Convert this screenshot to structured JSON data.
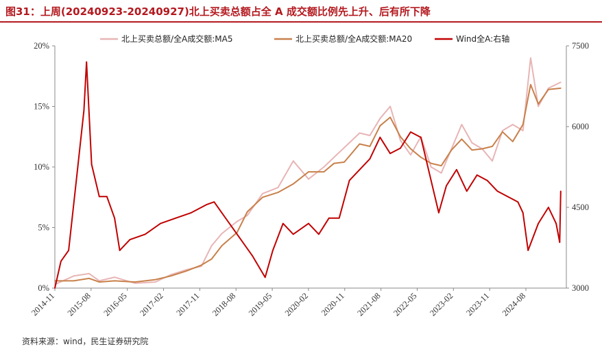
{
  "title": "图31：上周(20240923-20240927)北上买卖总额占全 A 成交额比例先上升、后有所下降",
  "source": "资料来源：wind，民生证券研究院",
  "colors": {
    "title": "#b3191f",
    "ma5": "#e8b4b4",
    "ma20": "#c8804a",
    "wind": "#c00000"
  },
  "chart_data": {
    "type": "line",
    "x_tick_labels": [
      "2014-11",
      "2015-08",
      "2016-05",
      "2017-02",
      "2017-11",
      "2018-08",
      "2019-05",
      "2020-02",
      "2020-11",
      "2021-08",
      "2022-05",
      "2023-02",
      "2023-11",
      "2024-08"
    ],
    "left_axis": {
      "ylim": [
        0,
        20
      ],
      "ticks": [
        "0%",
        "5%",
        "10%",
        "15%",
        "20%"
      ]
    },
    "right_axis": {
      "ylim": [
        3000,
        7500
      ],
      "ticks": [
        "3000",
        "4500",
        "6000",
        "7500"
      ]
    },
    "legend": [
      "北上买卖总额/全A成交额:MA5",
      "北上买卖总额/全A成交额:MA20",
      "Wind全A:右轴"
    ],
    "legend_position": "top",
    "grid": false,
    "series": [
      {
        "name": "北上买卖总额/全A成交额:MA5",
        "axis": "left",
        "x": [
          2014.83,
          2015.2,
          2015.5,
          2015.7,
          2016.0,
          2016.4,
          2016.8,
          2017.1,
          2017.4,
          2017.7,
          2017.9,
          2018.1,
          2018.4,
          2018.6,
          2018.9,
          2019.2,
          2019.5,
          2019.8,
          2020.1,
          2020.3,
          2020.5,
          2020.8,
          2021.0,
          2021.2,
          2021.4,
          2021.6,
          2021.8,
          2022.0,
          2022.2,
          2022.4,
          2022.6,
          2022.8,
          2023.0,
          2023.2,
          2023.4,
          2023.6,
          2023.8,
          2024.0,
          2024.15,
          2024.3,
          2024.5,
          2024.74
        ],
        "values": [
          0.3,
          1.0,
          1.2,
          0.6,
          0.9,
          0.4,
          0.5,
          1.1,
          1.5,
          1.8,
          3.5,
          4.5,
          5.5,
          6.0,
          7.8,
          8.3,
          10.5,
          9.0,
          10.0,
          10.8,
          11.6,
          12.8,
          12.6,
          14.0,
          15.0,
          12.2,
          11.0,
          12.5,
          10.0,
          9.5,
          11.5,
          13.5,
          12.0,
          11.5,
          10.5,
          13.0,
          13.5,
          13.0,
          19.0,
          15.0,
          16.5,
          17.0
        ]
      },
      {
        "name": "北上买卖总额/全A成交额:MA20",
        "axis": "left",
        "x": [
          2014.83,
          2015.2,
          2015.5,
          2015.7,
          2016.0,
          2016.4,
          2016.8,
          2017.1,
          2017.4,
          2017.7,
          2017.9,
          2018.1,
          2018.4,
          2018.6,
          2018.9,
          2019.2,
          2019.5,
          2019.8,
          2020.1,
          2020.3,
          2020.5,
          2020.8,
          2021.0,
          2021.2,
          2021.4,
          2021.6,
          2021.8,
          2022.0,
          2022.2,
          2022.4,
          2022.6,
          2022.8,
          2023.0,
          2023.2,
          2023.4,
          2023.6,
          2023.8,
          2024.0,
          2024.15,
          2024.3,
          2024.5,
          2024.74
        ],
        "values": [
          0.6,
          0.6,
          0.8,
          0.5,
          0.6,
          0.5,
          0.7,
          1.0,
          1.4,
          1.9,
          2.4,
          3.5,
          4.6,
          6.3,
          7.5,
          7.9,
          8.6,
          9.6,
          9.6,
          10.3,
          10.4,
          11.9,
          11.7,
          13.4,
          14.1,
          12.5,
          11.5,
          10.8,
          10.3,
          10.1,
          11.4,
          12.3,
          11.4,
          11.5,
          11.7,
          12.9,
          12.1,
          13.5,
          16.8,
          15.2,
          16.4,
          16.5
        ]
      },
      {
        "name": "Wind全A:右轴",
        "axis": "right",
        "x": [
          2014.83,
          2014.95,
          2015.1,
          2015.25,
          2015.4,
          2015.45,
          2015.55,
          2015.7,
          2015.85,
          2016.0,
          2016.1,
          2016.3,
          2016.6,
          2016.9,
          2017.2,
          2017.5,
          2017.8,
          2017.95,
          2018.1,
          2018.4,
          2018.7,
          2018.95,
          2019.1,
          2019.3,
          2019.5,
          2019.8,
          2020.0,
          2020.2,
          2020.4,
          2020.6,
          2020.8,
          2021.0,
          2021.2,
          2021.4,
          2021.6,
          2021.8,
          2022.0,
          2022.2,
          2022.35,
          2022.5,
          2022.7,
          2022.9,
          2023.1,
          2023.3,
          2023.5,
          2023.7,
          2023.9,
          2024.0,
          2024.1,
          2024.3,
          2024.5,
          2024.65,
          2024.72,
          2024.74
        ],
        "values": [
          3000,
          3500,
          3700,
          5000,
          6300,
          7200,
          5300,
          4700,
          4700,
          4300,
          3700,
          3900,
          4000,
          4200,
          4300,
          4400,
          4550,
          4600,
          4400,
          4000,
          3600,
          3200,
          3700,
          4200,
          4000,
          4200,
          4000,
          4300,
          4300,
          5000,
          5200,
          5400,
          5800,
          5500,
          5600,
          5900,
          5800,
          5000,
          4400,
          4900,
          5200,
          4800,
          5100,
          5000,
          4800,
          4700,
          4600,
          4400,
          3700,
          4200,
          4500,
          4200,
          3850,
          4800
        ]
      }
    ]
  }
}
